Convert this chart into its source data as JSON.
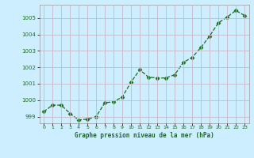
{
  "x": [
    0,
    1,
    2,
    3,
    4,
    5,
    6,
    7,
    8,
    9,
    10,
    11,
    12,
    13,
    14,
    15,
    16,
    17,
    18,
    19,
    20,
    21,
    22,
    23
  ],
  "y": [
    999.3,
    999.7,
    999.7,
    999.2,
    998.8,
    998.85,
    999.0,
    999.85,
    999.9,
    1000.2,
    1001.1,
    1001.85,
    1001.4,
    1001.35,
    1001.35,
    1001.55,
    1002.3,
    1002.6,
    1003.2,
    1003.9,
    1004.7,
    1005.05,
    1005.45,
    1005.15
  ],
  "line_color": "#1a6e1a",
  "marker": "D",
  "marker_size": 2.5,
  "bg_color": "#cceeff",
  "grid_color": "#c8b8c8",
  "xlabel": "Graphe pression niveau de la mer (hPa)",
  "xlabel_color": "#1a6e1a",
  "tick_color": "#1a6e1a",
  "ylim": [
    998.6,
    1005.8
  ],
  "yticks": [
    999,
    1000,
    1001,
    1002,
    1003,
    1004,
    1005
  ],
  "xlim": [
    -0.5,
    23.5
  ],
  "xticks": [
    0,
    1,
    2,
    3,
    4,
    5,
    6,
    7,
    8,
    9,
    10,
    11,
    12,
    13,
    14,
    15,
    16,
    17,
    18,
    19,
    20,
    21,
    22,
    23
  ]
}
